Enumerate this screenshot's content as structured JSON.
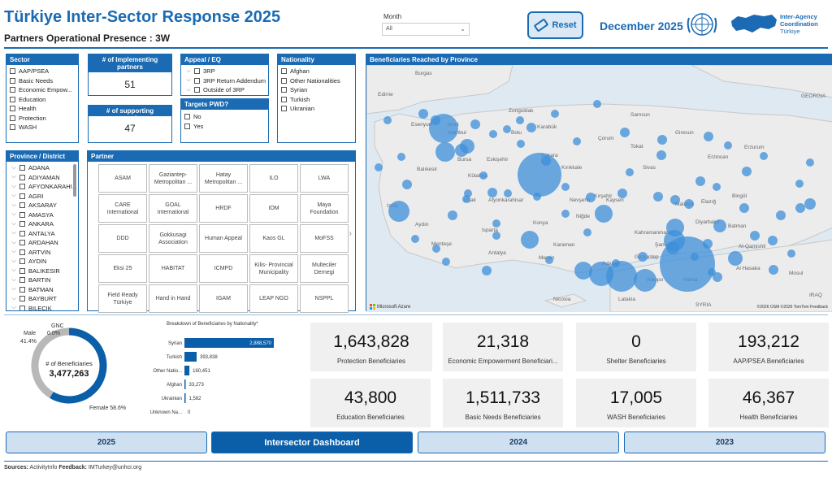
{
  "header": {
    "title": "Türkiye Inter-Sector Response 2025",
    "subtitle": "Partners Operational Presence : 3W",
    "month_label": "Month",
    "month_value": "All",
    "reset_label": "Reset",
    "date_title": "December 2025",
    "iac_line1": "Inter-Agency",
    "iac_line2": "Coordination",
    "iac_line3": "Türkiye"
  },
  "sector": {
    "title": "Sector",
    "items": [
      "AAP/PSEA",
      "Basic Needs",
      "Economic Empow...",
      "Education",
      "Health",
      "Protection",
      "WASH"
    ]
  },
  "implementing": {
    "title": "# of Implementing partners",
    "value": "51"
  },
  "supporting": {
    "title": "# of supporting agencies",
    "value": "47"
  },
  "appeal": {
    "title": "Appeal / EQ",
    "items": [
      "3RP",
      "3RP Return Addendum",
      "Outside of 3RP"
    ]
  },
  "pwd": {
    "title": "Targets PWD?",
    "items": [
      "No",
      "Yes"
    ]
  },
  "nationality": {
    "title": "Nationality",
    "items": [
      "Afghan",
      "Other Nationalities",
      "Syrian",
      "Turkish",
      "Ukranian"
    ]
  },
  "province": {
    "title": "Province / District",
    "items": [
      "ADANA",
      "ADIYAMAN",
      "AFYONKARAHI...",
      "AGRI",
      "AKSARAY",
      "AMASYA",
      "ANKARA",
      "ANTALYA",
      "ARDAHAN",
      "ARTVIN",
      "AYDIN",
      "BALIKESIR",
      "BARTIN",
      "BATMAN",
      "BAYBURT",
      "BILECIK"
    ]
  },
  "partner": {
    "title": "Partner",
    "cells": [
      "ASAM",
      "Gaziantep-Metropolitan ...",
      "Hatay Metropolitan ...",
      "ILO",
      "LWA",
      "CARE International",
      "GOAL International",
      "HRDF",
      "IOM",
      "Maya Foundation",
      "DDD",
      "Gokkusagi Association",
      "Human Appeal",
      "Kaos GL",
      "MoFSS",
      "Eksi 25",
      "HABITAT",
      "ICMPD",
      "Kilis- Provincial Municipality",
      "Multeciler Dernegi",
      "Field Ready Türkiye",
      "Hand in Hand",
      "IGAM",
      "LEAP NGO",
      "NSPPL"
    ]
  },
  "map": {
    "title": "Beneficiaries Reached by Province",
    "attribution": "©2026 OSM ©2026 TomTom Feedback",
    "brand": "Microsoft Azure",
    "places": [
      "Burgas",
      "Edirne",
      "Esenyurt",
      "Istanbul",
      "Bursa",
      "Balıkesir",
      "Izmir",
      "Aydın",
      "Menteşe",
      "Isparta",
      "Antalya",
      "Eskişehir",
      "Kütahya",
      "Uşak",
      "Afyonkarahisar",
      "Ankara",
      "Kırıkkale",
      "Kırşehir",
      "Nevşehir",
      "Niğde",
      "Konya",
      "Karaman",
      "Mersin",
      "Adana",
      "Kahramanmaraş",
      "Gaziantep",
      "Şanlıurfa",
      "Aleppo",
      "Hama",
      "Latakia",
      "Nicosia",
      "Zonguldak",
      "Karabük",
      "Bolu",
      "Samsun",
      "Giresun",
      "Tokat",
      "Çorum",
      "Sivas",
      "Erzincan",
      "Erzurum",
      "Kayseri",
      "Malatya",
      "Elazığ",
      "Bingöl",
      "Diyarbakır",
      "Batman",
      "Al-Qamishli",
      "Al Hasaka",
      "Mosul",
      "GEORGIA",
      "IRAQ",
      "SYRIA",
      "Izmit"
    ]
  },
  "donut": {
    "title": "# of Beneficiaries",
    "total": "3,477,263",
    "male_label": "Male",
    "male_pct": "41.4%",
    "female_label": "Female 58.6%",
    "gnc_label": "GNC",
    "gnc_pct": "0.0%",
    "segments": [
      {
        "name": "Female",
        "value": 58.6,
        "color": "#0b5ea8"
      },
      {
        "name": "Male",
        "value": 41.4,
        "color": "#b8b8b8"
      }
    ]
  },
  "nationality_chart": {
    "title": "Breakdown of Beneficiaries by Nationality*",
    "type": "bar",
    "categories": [
      "Syrian",
      "Turkish",
      "Other Natio...",
      "Afghan",
      "Ukrainian",
      "Unknown Na..."
    ],
    "values": [
      2888570,
      393838,
      160451,
      33273,
      1582,
      0
    ],
    "labels": [
      "2,888,570",
      "393,838",
      "160,451",
      "33,273",
      "1,582",
      "0"
    ]
  },
  "kpis": [
    {
      "value": "1,643,828",
      "label": "Protection Beneficiaries"
    },
    {
      "value": "21,318",
      "label": "Economic Empowerment Beneficiari..."
    },
    {
      "value": "0",
      "label": "Shelter Beneficiaries"
    },
    {
      "value": "193,212",
      "label": "AAP/PSEA Beneficiaries"
    },
    {
      "value": "43,800",
      "label": "Education Beneficiaries"
    },
    {
      "value": "1,511,733",
      "label": "Basic Needs Beneficiaries"
    },
    {
      "value": "17,005",
      "label": "WASH Beneficiaries"
    },
    {
      "value": "46,367",
      "label": "Health Beneficiaries"
    }
  ],
  "tabs": [
    "2025",
    "Intersector Dashboard",
    "2024",
    "2023"
  ],
  "footer": {
    "sources_label": "Sources:",
    "sources_text": "ActivityInfo",
    "feedback_label": "Feedback:",
    "feedback_text": "IMTurkey@unhcr.org"
  },
  "colors": {
    "accent": "#1a6bb3",
    "bubble": "#3d8fd9",
    "female": "#0b5ea8",
    "male": "#b8b8b8"
  }
}
